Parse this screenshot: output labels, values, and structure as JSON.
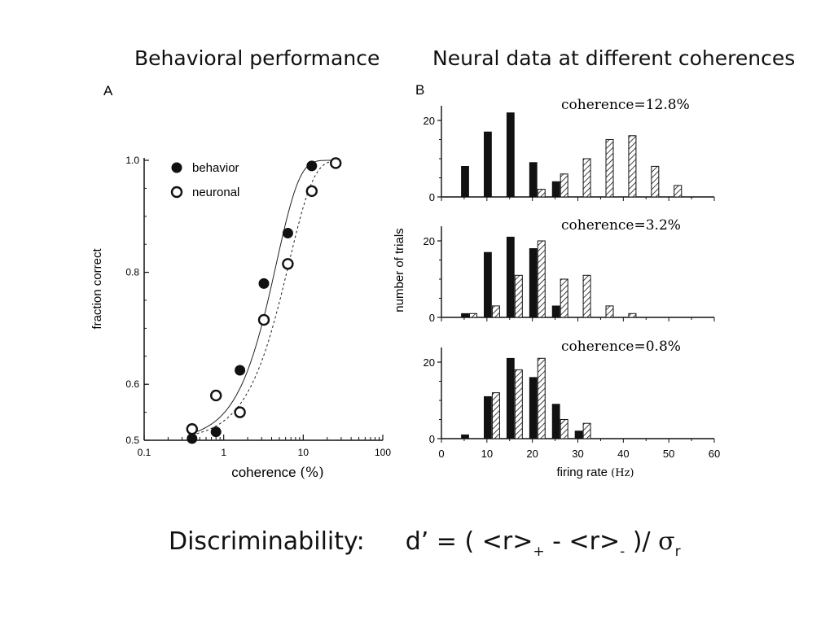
{
  "headings": {
    "left": "Behavioral performance",
    "right": "Neural data at different coherences"
  },
  "formula": {
    "label": "Discriminability:",
    "lhs": "d’ = (",
    "r_plus": "<r>",
    "plus_sub": "+",
    "minus": " - ",
    "r_minus": "<r>",
    "minus_sub": "-",
    "close": " )/ ",
    "sigma": "σ",
    "sigma_sub": "r"
  },
  "chart_data": [
    {
      "type": "scatter",
      "panel_label": "A",
      "xlabel": "coherence",
      "xlabel_unit": "(%)",
      "ylabel": "fraction correct",
      "xscale": "log",
      "xlim": [
        0.1,
        100
      ],
      "ylim": [
        0.5,
        1.0
      ],
      "xticks": [
        "0.1",
        "1",
        "10",
        "100"
      ],
      "yticks": [
        "0.5",
        "0.6",
        "0.8",
        "1.0"
      ],
      "legend_position": "top-left",
      "series": [
        {
          "name": "behavior",
          "marker": "filled-circle",
          "line": "solid",
          "x": [
            0.4,
            0.8,
            1.6,
            3.2,
            6.4,
            12.8,
            25.6
          ],
          "y": [
            0.503,
            0.515,
            0.625,
            0.78,
            0.87,
            0.99,
            0.995
          ]
        },
        {
          "name": "neuronal",
          "marker": "open-circle",
          "line": "dashed",
          "x": [
            0.4,
            0.8,
            1.6,
            3.2,
            6.4,
            12.8,
            25.6
          ],
          "y": [
            0.52,
            0.58,
            0.55,
            0.715,
            0.815,
            0.945,
            0.995
          ]
        }
      ]
    },
    {
      "type": "bar",
      "panel_label": "B",
      "ylabel": "number of trials",
      "xlabel": "firing rate",
      "xlabel_unit": "(Hz)",
      "xlim": [
        0,
        60
      ],
      "xticks": [
        "0",
        "10",
        "20",
        "30",
        "40",
        "50",
        "60"
      ],
      "yticks": [
        "0",
        "20"
      ],
      "panels": [
        {
          "label": "coherence=12.8%",
          "bin_centers": [
            5,
            10,
            15,
            20,
            25,
            30,
            35,
            40,
            45,
            50
          ],
          "solid": [
            8,
            17,
            22,
            9,
            4,
            0,
            0,
            0,
            0,
            0
          ],
          "hatched": [
            0,
            0,
            0,
            2,
            6,
            10,
            15,
            16,
            8,
            3
          ]
        },
        {
          "label": "coherence=3.2%",
          "bin_centers": [
            5,
            10,
            15,
            20,
            25,
            30,
            35,
            40,
            45,
            50
          ],
          "solid": [
            1,
            17,
            21,
            18,
            3,
            0,
            0,
            0,
            0,
            0
          ],
          "hatched": [
            1,
            3,
            11,
            20,
            10,
            11,
            3,
            1,
            0,
            0
          ]
        },
        {
          "label": "coherence=0.8%",
          "bin_centers": [
            5,
            10,
            15,
            20,
            25,
            30,
            35,
            40,
            45,
            50
          ],
          "solid": [
            1,
            11,
            21,
            16,
            9,
            2,
            0,
            0,
            0,
            0
          ],
          "hatched": [
            0,
            12,
            18,
            21,
            5,
            4,
            0,
            0,
            0,
            0
          ]
        }
      ]
    }
  ]
}
